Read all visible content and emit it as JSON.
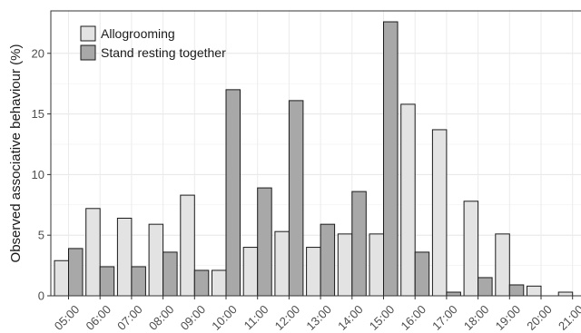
{
  "chart_data": {
    "type": "bar",
    "title": "",
    "xlabel": "",
    "ylabel": "Observed associative behaviour (%)",
    "ylim": [
      0,
      23.5
    ],
    "yticks": [
      0,
      5,
      10,
      15,
      20
    ],
    "grid": true,
    "legend_position": "top-left",
    "categories": [
      "05:00",
      "06:00",
      "07:00",
      "08:00",
      "09:00",
      "10:00",
      "11:00",
      "12:00",
      "13:00",
      "14:00",
      "15:00",
      "16:00",
      "17:00",
      "18:00",
      "19:00",
      "20:00",
      "21:00"
    ],
    "series": [
      {
        "name": "Allogrooming",
        "color": "#e3e3e3",
        "values": [
          2.9,
          7.2,
          6.4,
          5.9,
          8.3,
          2.1,
          4.0,
          5.3,
          4.0,
          5.1,
          5.1,
          15.8,
          13.7,
          7.8,
          5.1,
          0.8,
          0.3
        ]
      },
      {
        "name": "Stand resting together",
        "color": "#a8a8a8",
        "values": [
          3.9,
          2.4,
          2.4,
          3.6,
          2.1,
          17.0,
          8.9,
          16.1,
          5.9,
          8.6,
          22.6,
          3.6,
          0.3,
          1.5,
          0.9,
          0,
          0
        ]
      }
    ]
  }
}
